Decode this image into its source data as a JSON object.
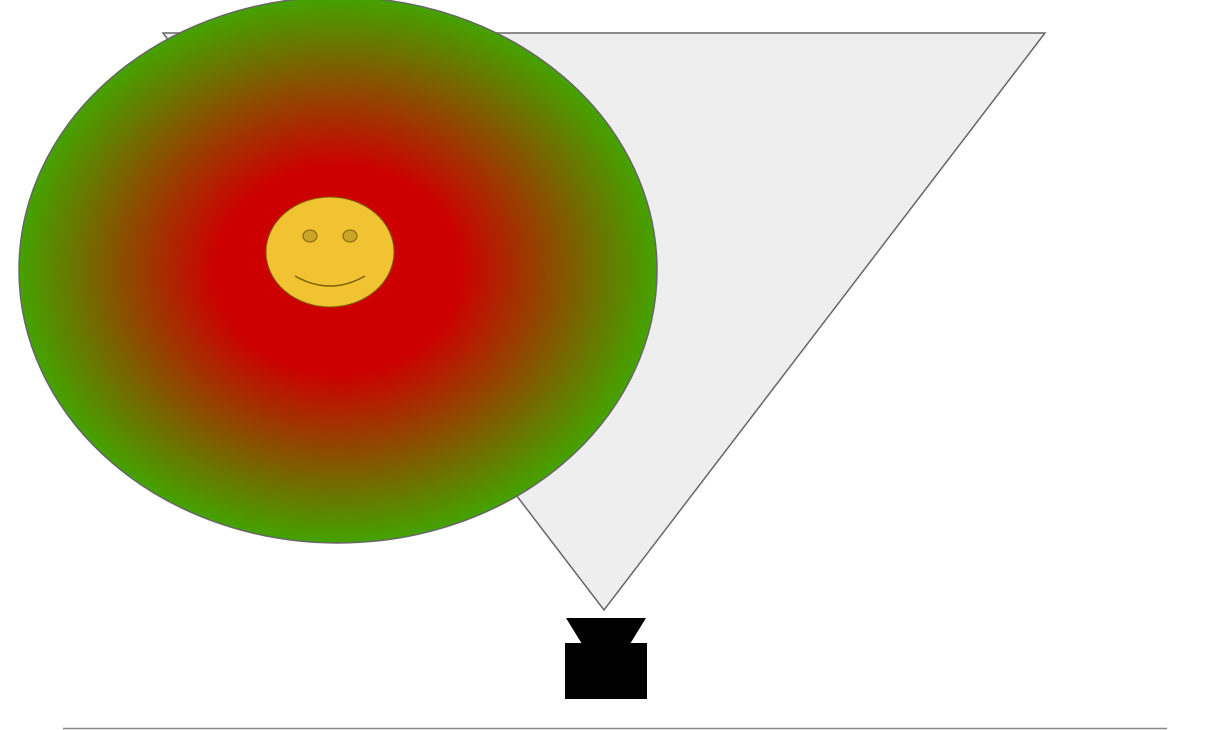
{
  "scene": {
    "background": "#ffffff",
    "view_cone": {
      "icon": "view-cone-triangle",
      "fill": "#eeeeee",
      "stroke": "#666666"
    },
    "gradient_ellipse": {
      "icon": "radial-gradient-ellipse",
      "inner_color": "#cc0000",
      "outer_color": "#44a300",
      "stroke": "#666666"
    },
    "smiley": {
      "icon": "smiley-face-icon",
      "fill": "#f1c232",
      "stroke": "#7f6000",
      "eye_fill": "#c9a52a"
    },
    "camera": {
      "icon": "camera-icon",
      "color": "#000000"
    },
    "floor_line": {
      "color": "#888888"
    }
  }
}
